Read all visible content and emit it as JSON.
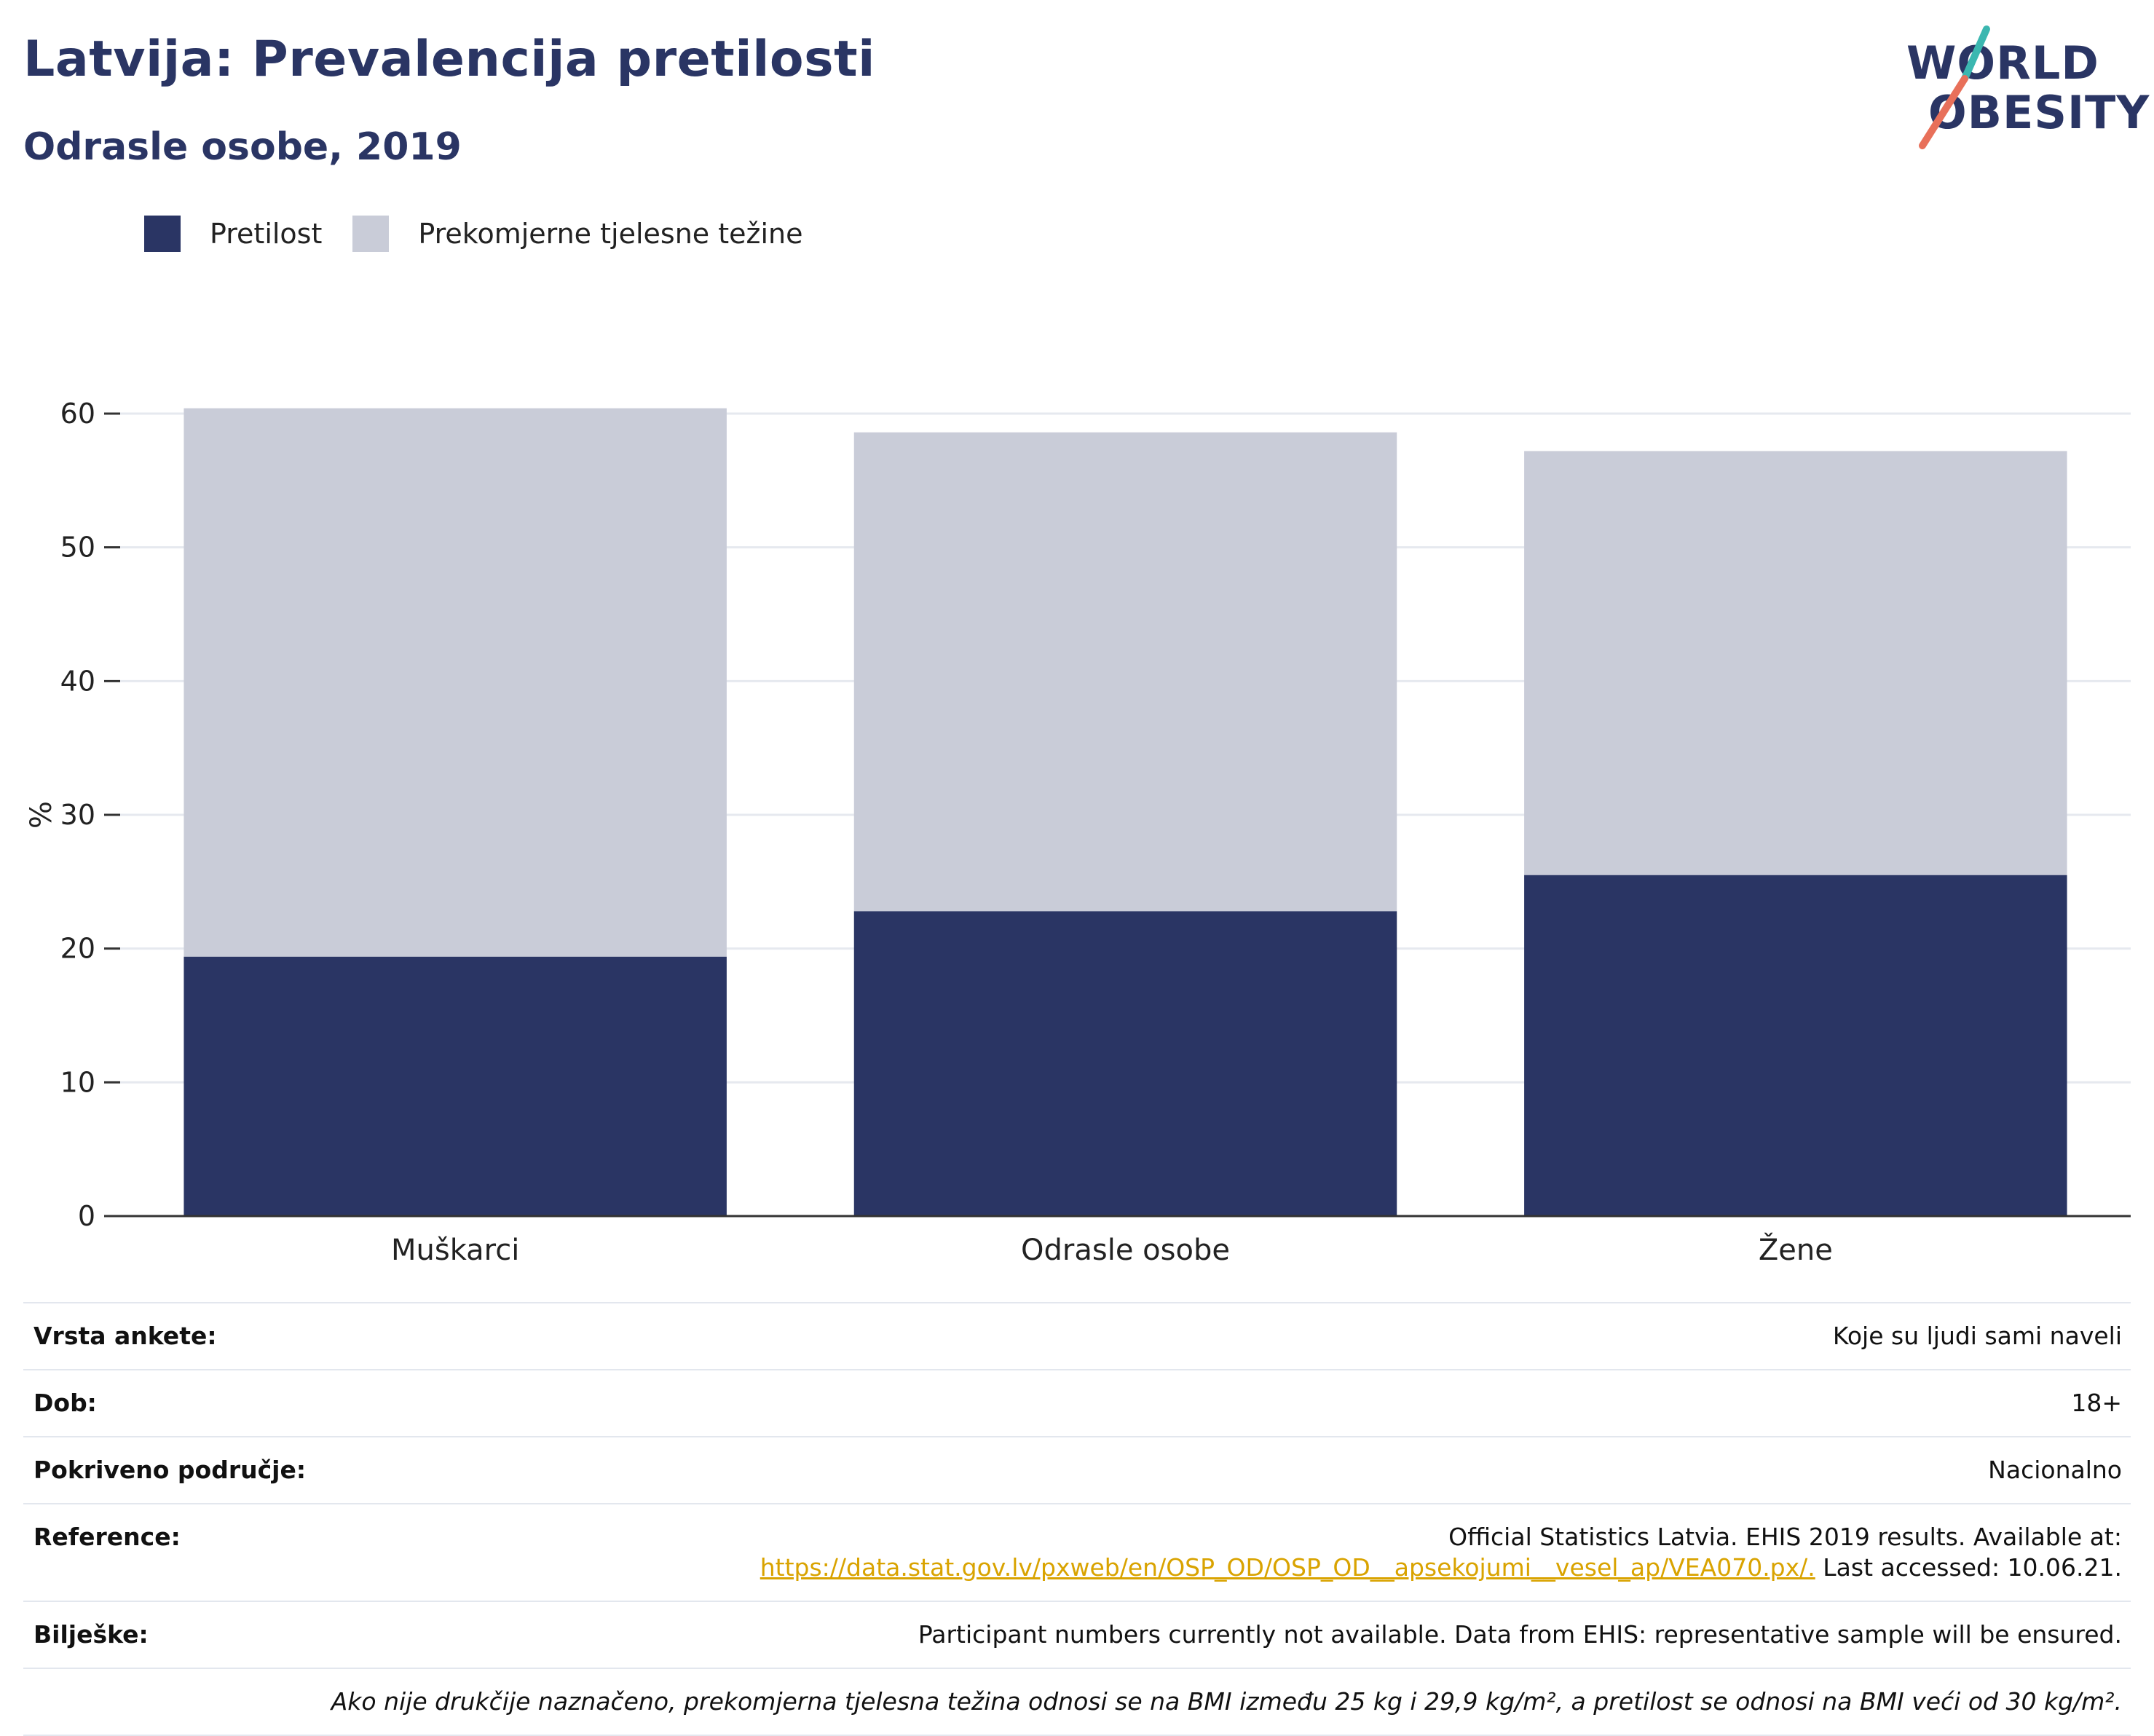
{
  "header": {
    "title": "Latvija: Prevalencija pretilosti",
    "subtitle": "Odrasle osobe, 2019"
  },
  "logo": {
    "line1": "WORLD",
    "line2": "OBESITY"
  },
  "legend": [
    {
      "label": "Pretilost",
      "color": "#2a3564"
    },
    {
      "label": "Prekomjerne tjelesne težine",
      "color": "#c9ccd8"
    }
  ],
  "chart_data": {
    "type": "bar",
    "stacked": true,
    "categories": [
      "Muškarci",
      "Odrasle osobe",
      "Žene"
    ],
    "series": [
      {
        "name": "Pretilost",
        "color": "#2a3564",
        "values": [
          19.4,
          22.8,
          25.5
        ]
      },
      {
        "name": "Prekomjerne tjelesne težine",
        "color": "#c9ccd8",
        "values": [
          41.0,
          35.8,
          31.7
        ]
      }
    ],
    "ylabel": "%",
    "xlabel": "",
    "ylim": [
      0,
      60
    ],
    "yticks": [
      0,
      10,
      20,
      30,
      40,
      50,
      60
    ],
    "grid": true,
    "legend_position": "top-left"
  },
  "meta": [
    {
      "key": "Vrsta ankete:",
      "value": "Koje su ljudi sami naveli"
    },
    {
      "key": "Dob:",
      "value": "18+"
    },
    {
      "key": "Pokriveno područje:",
      "value": "Nacionalno"
    },
    {
      "key": "Reference:",
      "value_line1": "Official Statistics Latvia. EHIS 2019 results. Available at:",
      "link": "https://data.stat.gov.lv/pxweb/en/OSP_OD/OSP_OD__apsekojumi__vesel_ap/VEA070.px/.",
      "after_link": " Last accessed: 10.06.21."
    },
    {
      "key": "Bilješke:",
      "value": "Participant numbers currently not available. Data from EHIS: representative sample will be ensured."
    }
  ],
  "footnote": "Ako nije drukčije naznačeno, prekomjerna tjelesna težina odnosi se na BMI između 25 kg i 29,9 kg/m², a pretilost se odnosi na BMI veći od 30 kg/m²."
}
